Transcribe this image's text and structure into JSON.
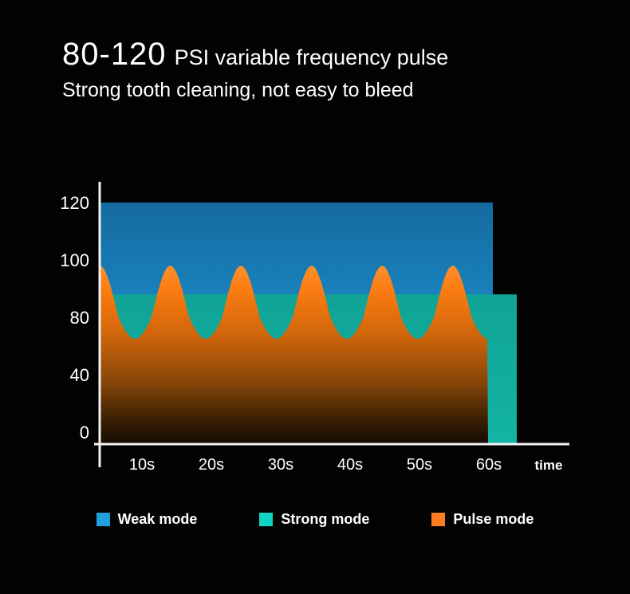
{
  "title": {
    "highlight": "80-120",
    "rest": "PSI variable frequency pulse",
    "subtitle": "Strong tooth cleaning, not easy to bleed"
  },
  "chart_data": {
    "type": "area",
    "title": "80-120 PSI variable frequency pulse",
    "x_ticks": [
      "10s",
      "20s",
      "30s",
      "40s",
      "50s",
      "60s"
    ],
    "x_axis_label": "time",
    "y_ticks": [
      120,
      100,
      80,
      40,
      0
    ],
    "ylim": [
      0,
      120
    ],
    "grid": false,
    "legend_position": "bottom",
    "series": [
      {
        "name": "Weak mode",
        "shape": "constant-band",
        "value": 120,
        "color": "#1a82bd"
      },
      {
        "name": "Strong mode",
        "shape": "constant-band",
        "value": 88,
        "color": "#12ae9f"
      },
      {
        "name": "Pulse mode",
        "shape": "sine-wave",
        "min": 65,
        "max": 98,
        "cycles": 5.5,
        "color": "#fb7c12"
      }
    ]
  },
  "legend": [
    {
      "label": "Weak mode",
      "color": "#1f9fdd"
    },
    {
      "label": "Strong mode",
      "color": "#10d2c2"
    },
    {
      "label": "Pulse mode",
      "color": "#fd7d1e"
    }
  ]
}
